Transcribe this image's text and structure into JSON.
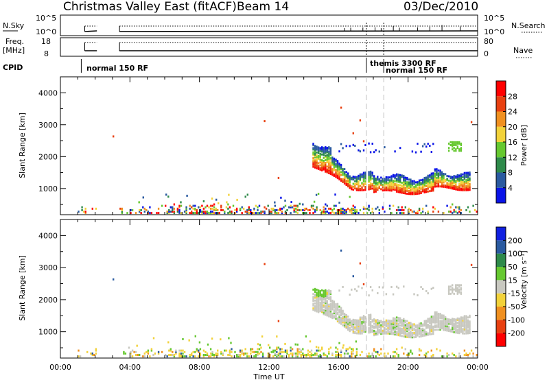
{
  "header": {
    "title": "Christmas Valley East (fitACF)",
    "beam": "Beam 14",
    "date": "03/Dec/2010"
  },
  "top_panels": {
    "nsky_label": "N.Sky",
    "nsearch_label": "N.Search",
    "nsky_ticks": [
      "10^5",
      "10^0"
    ],
    "nsky_right_ticks": [
      "10^5",
      "10^0"
    ],
    "freq_label_1": "Freq.",
    "freq_label_2": "[MHz]",
    "freq_ticks": [
      "18",
      "8"
    ],
    "nave_label": "Nave",
    "nave_ticks": [
      "80",
      "0"
    ],
    "cpid_label": "CPID",
    "cpid_segments": [
      {
        "label": "normal 150 RF",
        "start_hr": 1.2
      },
      {
        "label": "themis 3300 RF",
        "start_hr": 17.6
      },
      {
        "label": "normal 150 RF",
        "start_hr": 18.6
      }
    ]
  },
  "chart_data": [
    {
      "type": "heatmap",
      "name": "power",
      "ylabel": "Slant Range [km]",
      "ylim": [
        180,
        4500
      ],
      "xlim": [
        0,
        24
      ],
      "yticks": [
        1000,
        2000,
        3000,
        4000
      ],
      "colorbar": {
        "label": "Power [dB]",
        "ticks": [
          "4",
          "8",
          "12",
          "16",
          "20",
          "24",
          "28"
        ],
        "colors": [
          "#0a14e8",
          "#2a5aa0",
          "#2e8a4a",
          "#66c830",
          "#f2d23a",
          "#f09020",
          "#e84010",
          "#ff0000"
        ]
      },
      "vlines_hr": [
        17.6,
        18.6
      ]
    },
    {
      "type": "heatmap",
      "name": "velocity",
      "ylabel": "Slant Range [km]",
      "xlabel": "Time UT",
      "ylim": [
        180,
        4500
      ],
      "xlim": [
        0,
        24
      ],
      "yticks": [
        1000,
        2000,
        3000,
        4000
      ],
      "xticks": [
        "00:00",
        "04:00",
        "08:00",
        "12:00",
        "16:00",
        "20:00",
        "00:00"
      ],
      "colorbar": {
        "label": "Velocity [m s⁻¹]",
        "ticks": [
          "200",
          "100",
          "50",
          "15",
          "-15",
          "-50",
          "-100",
          "-200"
        ],
        "colors": [
          "#1020e0",
          "#2a5aa0",
          "#2e8a4a",
          "#66c830",
          "#c8c8c0",
          "#f2d23a",
          "#f09020",
          "#e84010",
          "#ff0000"
        ]
      },
      "vlines_hr": [
        17.6,
        18.6
      ]
    }
  ]
}
